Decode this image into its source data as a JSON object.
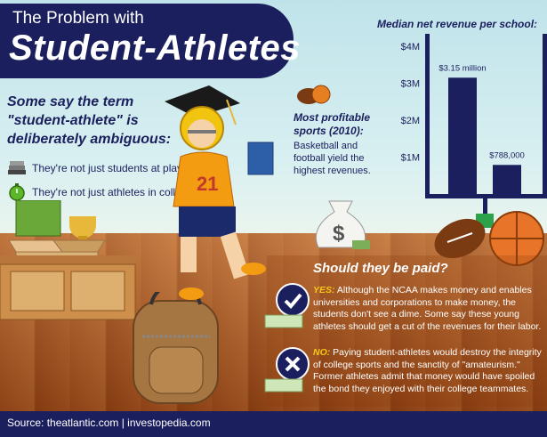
{
  "header": {
    "title_small": "The Problem with",
    "title_big": "Student-Athletes"
  },
  "intro": {
    "text": "Some say the term \"student-athlete\" is deliberately ambiguous:",
    "bullets": [
      {
        "icon": "books-icon",
        "text": "They're not just students at play"
      },
      {
        "icon": "stopwatch-icon",
        "text": "They're not just athletes in college"
      }
    ]
  },
  "profitable": {
    "title": "Most profitable sports (2010):",
    "body": "Basketball and football yield the highest revenues."
  },
  "paid": {
    "question": "Should they be paid?",
    "yes_label": "YES:",
    "yes_text": "Although the NCAA makes money and enables universities and corporations to make money, the students don't see a dime. Some say these young athletes should get a cut of the revenues for their labor.",
    "no_label": "NO:",
    "no_text": "Paying student-athletes would destroy the integrity of college sports and the sanctity of \"amateurism.\" Former athletes admit that money would have spoiled the bond they enjoyed with their college teammates."
  },
  "footer": {
    "source": "Source: theatlantic.com  |  investopedia.com"
  },
  "colors": {
    "navy": "#1b1f5e",
    "accent_yellow": "#f5c518",
    "floor": "#a8521d"
  },
  "chart_data": {
    "type": "bar",
    "title": "Median net revenue per school:",
    "categories": [
      "",
      ""
    ],
    "values": [
      3150000,
      788000
    ],
    "data_labels": [
      "$3.15 million",
      "$788,000"
    ],
    "yticks": [
      "$1M",
      "$2M",
      "$3M",
      "$4M"
    ],
    "ylim": [
      0,
      4000000
    ],
    "grid": false,
    "legend": "none"
  }
}
